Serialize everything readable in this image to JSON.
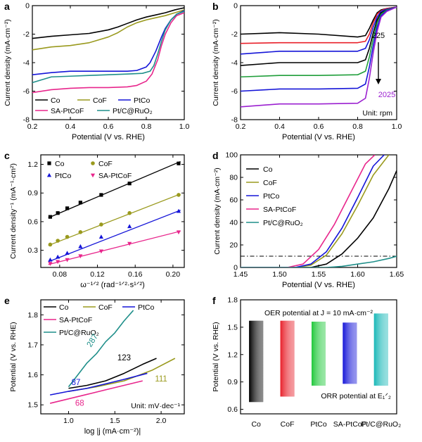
{
  "figure": {
    "title": ""
  },
  "colors": {
    "black": "#000000",
    "olive": "#9a9a1e",
    "blue": "#1515d8",
    "magenta": "#e8268c",
    "teal": "#1f8f8a",
    "red": "#e8202a",
    "green": "#1f9e3a",
    "purple": "#9b20d0"
  },
  "chart_data": [
    {
      "id": "a",
      "panel_label": "a",
      "type": "line",
      "xlabel": "Potential (V vs. RHE)",
      "ylabel": "Current density (mA·cm⁻²)",
      "xlim": [
        0.2,
        1.0
      ],
      "ylim": [
        -8,
        0
      ],
      "xticks": [
        0.2,
        0.4,
        0.6,
        0.8,
        1.0
      ],
      "xtick_labels": [
        "0.2",
        "0.4",
        "0.6",
        "0.8",
        "1.0"
      ],
      "yticks": [
        -8,
        -6,
        -4,
        -2,
        0
      ],
      "ytick_labels": [
        "-8",
        "-6",
        "-4",
        "-2",
        "0"
      ],
      "legend": {
        "placement": "bottom-left",
        "columns": 3
      },
      "series": [
        {
          "name": "Co",
          "color": "#000000",
          "x": [
            0.2,
            0.3,
            0.4,
            0.5,
            0.6,
            0.65,
            0.7,
            0.75,
            0.8,
            0.85,
            0.9,
            0.95,
            1.0
          ],
          "y": [
            -2.3,
            -2.15,
            -2.05,
            -1.95,
            -1.7,
            -1.5,
            -1.25,
            -1.0,
            -0.8,
            -0.65,
            -0.5,
            -0.3,
            -0.15
          ]
        },
        {
          "name": "CoF",
          "color": "#9a9a1e",
          "x": [
            0.2,
            0.3,
            0.4,
            0.5,
            0.6,
            0.65,
            0.7,
            0.75,
            0.8,
            0.85,
            0.9,
            0.95,
            1.0
          ],
          "y": [
            -3.1,
            -2.9,
            -2.8,
            -2.6,
            -2.2,
            -1.9,
            -1.5,
            -1.2,
            -1.0,
            -0.85,
            -0.7,
            -0.5,
            -0.3
          ]
        },
        {
          "name": "PtCo",
          "color": "#1515d8",
          "x": [
            0.2,
            0.3,
            0.4,
            0.5,
            0.6,
            0.7,
            0.75,
            0.8,
            0.82,
            0.85,
            0.88,
            0.9,
            0.93,
            0.96,
            1.0
          ],
          "y": [
            -4.85,
            -4.7,
            -4.6,
            -4.6,
            -4.6,
            -4.6,
            -4.55,
            -4.3,
            -4.0,
            -3.2,
            -2.2,
            -1.6,
            -1.0,
            -0.6,
            -0.35
          ]
        },
        {
          "name": "SA-PtCoF",
          "color": "#e8268c",
          "x": [
            0.2,
            0.3,
            0.4,
            0.5,
            0.6,
            0.7,
            0.75,
            0.8,
            0.83,
            0.86,
            0.88,
            0.9,
            0.93,
            0.96,
            1.0
          ],
          "y": [
            -6.1,
            -5.9,
            -5.8,
            -5.75,
            -5.75,
            -5.7,
            -5.6,
            -5.3,
            -4.8,
            -3.8,
            -2.8,
            -2.0,
            -1.2,
            -0.7,
            -0.5
          ]
        },
        {
          "name": "Pt/C@RuO₂",
          "color": "#1f8f8a",
          "x": [
            0.2,
            0.3,
            0.4,
            0.5,
            0.6,
            0.7,
            0.78,
            0.82,
            0.84,
            0.86,
            0.88,
            0.9,
            0.93,
            0.96,
            1.0
          ],
          "y": [
            -5.4,
            -5.0,
            -4.95,
            -4.9,
            -4.85,
            -4.8,
            -4.75,
            -4.6,
            -4.2,
            -3.4,
            -2.5,
            -1.7,
            -1.0,
            -0.6,
            -0.4
          ]
        }
      ]
    },
    {
      "id": "b",
      "panel_label": "b",
      "type": "line",
      "xlabel": "Potential (V vs. RHE)",
      "ylabel": "Current density (mA·cm⁻²)",
      "xlim": [
        0.2,
        1.0
      ],
      "ylim": [
        -8,
        0
      ],
      "xticks": [
        0.2,
        0.4,
        0.6,
        0.8,
        1.0
      ],
      "xtick_labels": [
        "0.2",
        "0.4",
        "0.6",
        "0.8",
        "1.0"
      ],
      "yticks": [
        -8,
        -6,
        -4,
        -2,
        0
      ],
      "ytick_labels": [
        "-8",
        "-6",
        "-4",
        "-2",
        "0"
      ],
      "annotations": {
        "top": "225",
        "bottom": "2025",
        "unit": "Unit: rpm"
      },
      "series": [
        {
          "color": "#000000",
          "x": [
            0.2,
            0.4,
            0.6,
            0.8,
            0.84,
            0.86,
            0.88,
            0.9,
            0.92,
            0.95,
            1.0
          ],
          "y": [
            -2.0,
            -1.9,
            -2.0,
            -2.2,
            -2.1,
            -1.6,
            -1.0,
            -0.5,
            -0.3,
            -0.2,
            -0.1
          ]
        },
        {
          "color": "#e8202a",
          "x": [
            0.2,
            0.4,
            0.6,
            0.8,
            0.84,
            0.86,
            0.88,
            0.9,
            0.92,
            0.95,
            1.0
          ],
          "y": [
            -2.65,
            -2.6,
            -2.6,
            -2.6,
            -2.5,
            -2.0,
            -1.2,
            -0.6,
            -0.35,
            -0.2,
            -0.1
          ]
        },
        {
          "color": "#1515d8",
          "x": [
            0.2,
            0.4,
            0.6,
            0.8,
            0.84,
            0.86,
            0.88,
            0.9,
            0.92,
            0.95,
            1.0
          ],
          "y": [
            -3.4,
            -3.2,
            -3.2,
            -3.2,
            -3.0,
            -2.4,
            -1.5,
            -0.8,
            -0.4,
            -0.25,
            -0.1
          ]
        },
        {
          "color": "#000000",
          "x": [
            0.2,
            0.4,
            0.6,
            0.8,
            0.84,
            0.86,
            0.88,
            0.9,
            0.92,
            0.95,
            1.0
          ],
          "y": [
            -4.2,
            -4.0,
            -4.0,
            -4.0,
            -3.8,
            -3.0,
            -1.9,
            -1.0,
            -0.5,
            -0.3,
            -0.1
          ]
        },
        {
          "color": "#1f9e3a",
          "x": [
            0.2,
            0.4,
            0.6,
            0.8,
            0.84,
            0.86,
            0.88,
            0.9,
            0.92,
            0.95,
            1.0
          ],
          "y": [
            -5.0,
            -4.9,
            -4.9,
            -4.85,
            -4.6,
            -3.6,
            -2.3,
            -1.2,
            -0.6,
            -0.3,
            -0.1
          ]
        },
        {
          "color": "#1515d8",
          "x": [
            0.2,
            0.4,
            0.6,
            0.8,
            0.84,
            0.86,
            0.88,
            0.9,
            0.92,
            0.95,
            1.0
          ],
          "y": [
            -6.0,
            -5.85,
            -5.85,
            -5.8,
            -5.5,
            -4.3,
            -2.8,
            -1.5,
            -0.7,
            -0.35,
            -0.1
          ]
        },
        {
          "color": "#9b20d0",
          "x": [
            0.2,
            0.4,
            0.6,
            0.8,
            0.84,
            0.86,
            0.88,
            0.9,
            0.92,
            0.95,
            1.0
          ],
          "y": [
            -7.1,
            -6.9,
            -6.9,
            -6.85,
            -6.5,
            -5.1,
            -3.3,
            -1.8,
            -0.8,
            -0.4,
            -0.1
          ]
        }
      ]
    },
    {
      "id": "c",
      "panel_label": "c",
      "type": "scatter",
      "xlabel": "ω⁻¹ᐟ² (rad⁻¹ᐟ²·s¹ᐟ²)",
      "ylabel": "Current density⁻¹ (mA⁻¹·cm²)",
      "xlim": [
        0.06,
        0.212
      ],
      "ylim": [
        0.12,
        1.3
      ],
      "xticks": [
        0.08,
        0.12,
        0.16,
        0.2
      ],
      "xtick_labels": [
        "0.08",
        "0.12",
        "0.16",
        "0.20"
      ],
      "yticks": [
        0.3,
        0.6,
        0.9,
        1.2
      ],
      "ytick_labels": [
        "0.3",
        "0.6",
        "0.9",
        "1.2"
      ],
      "legend": {
        "placement": "top-left",
        "columns": 2
      },
      "series": [
        {
          "name": "Co",
          "color": "#000000",
          "marker": "square",
          "x": [
            0.07,
            0.078,
            0.088,
            0.102,
            0.124,
            0.154,
            0.206
          ],
          "y": [
            0.65,
            0.69,
            0.74,
            0.8,
            0.88,
            1.0,
            1.21
          ],
          "fit": [
            [
              0.068,
              0.64
            ],
            [
              0.208,
              1.23
            ]
          ]
        },
        {
          "name": "CoF",
          "color": "#9a9a1e",
          "marker": "circle",
          "x": [
            0.07,
            0.078,
            0.088,
            0.102,
            0.124,
            0.154,
            0.206
          ],
          "y": [
            0.36,
            0.4,
            0.44,
            0.49,
            0.57,
            0.69,
            0.88
          ],
          "fit": [
            [
              0.068,
              0.35
            ],
            [
              0.208,
              0.89
            ]
          ]
        },
        {
          "name": "PtCo",
          "color": "#1515d8",
          "marker": "triangle-up",
          "x": [
            0.07,
            0.078,
            0.088,
            0.102,
            0.124,
            0.154,
            0.206
          ],
          "y": [
            0.2,
            0.23,
            0.27,
            0.34,
            0.44,
            0.55,
            0.71
          ],
          "fit": [
            [
              0.068,
              0.18
            ],
            [
              0.208,
              0.72
            ]
          ]
        },
        {
          "name": "SA-PtCoF",
          "color": "#e8268c",
          "marker": "triangle-down",
          "x": [
            0.07,
            0.078,
            0.088,
            0.102,
            0.124,
            0.154,
            0.206
          ],
          "y": [
            0.16,
            0.18,
            0.2,
            0.24,
            0.29,
            0.37,
            0.49
          ],
          "fit": [
            [
              0.068,
              0.15
            ],
            [
              0.208,
              0.5
            ]
          ]
        }
      ]
    },
    {
      "id": "d",
      "panel_label": "d",
      "type": "line",
      "xlabel": "Potential (V vs. RHE)",
      "ylabel": "Current density (mA·cm⁻²)",
      "xlim": [
        1.45,
        1.65
      ],
      "ylim": [
        0,
        100
      ],
      "xticks": [
        1.45,
        1.5,
        1.55,
        1.6,
        1.65
      ],
      "xtick_labels": [
        "1.45",
        "1.50",
        "1.55",
        "1.60",
        "1.65"
      ],
      "yticks": [
        0,
        20,
        40,
        60,
        80,
        100
      ],
      "ytick_labels": [
        "0",
        "20",
        "40",
        "60",
        "80",
        "100"
      ],
      "reference_line": {
        "y": 10
      },
      "legend": {
        "placement": "top-left",
        "columns": 1
      },
      "series": [
        {
          "name": "Co",
          "color": "#000000",
          "x": [
            1.45,
            1.54,
            1.56,
            1.58,
            1.6,
            1.62,
            1.64,
            1.65
          ],
          "y": [
            0,
            0,
            3,
            12,
            26,
            44,
            70,
            86
          ]
        },
        {
          "name": "CoF",
          "color": "#9a9a1e",
          "x": [
            1.45,
            1.52,
            1.54,
            1.56,
            1.58,
            1.6,
            1.62,
            1.64
          ],
          "y": [
            0,
            0,
            2,
            11,
            30,
            55,
            82,
            100
          ]
        },
        {
          "name": "PtCo",
          "color": "#1515d8",
          "x": [
            1.45,
            1.52,
            1.54,
            1.56,
            1.58,
            1.6,
            1.62,
            1.634
          ],
          "y": [
            0,
            0,
            3,
            14,
            35,
            62,
            90,
            100
          ]
        },
        {
          "name": "SA-PtCoF",
          "color": "#e8268c",
          "x": [
            1.45,
            1.51,
            1.53,
            1.55,
            1.57,
            1.59,
            1.61,
            1.622
          ],
          "y": [
            0,
            0,
            3,
            16,
            38,
            65,
            92,
            100
          ]
        },
        {
          "name": "Pt/C@RuO₂",
          "color": "#1f8f8a",
          "x": [
            1.45,
            1.56,
            1.58,
            1.6,
            1.62,
            1.64,
            1.65
          ],
          "y": [
            0,
            0,
            1,
            3,
            5,
            8,
            10
          ]
        }
      ]
    },
    {
      "id": "e",
      "panel_label": "e",
      "type": "line",
      "xlabel": "log |j (mA·cm⁻²)|",
      "ylabel": "Potential (V vs. RHE)",
      "xlim": [
        0.7,
        2.25
      ],
      "ylim": [
        1.47,
        1.85
      ],
      "xticks": [
        1.0,
        1.5,
        2.0
      ],
      "xtick_labels": [
        "1.0",
        "1.5",
        "2.0"
      ],
      "yticks": [
        1.5,
        1.6,
        1.7,
        1.8
      ],
      "ytick_labels": [
        "1.5",
        "1.6",
        "1.7",
        "1.8"
      ],
      "legend": {
        "placement": "top-left",
        "columns": 3
      },
      "annotations": {
        "tafel_slopes": [
          "123",
          "111",
          "87",
          "68",
          "287"
        ],
        "unit": "Unit: mV·dec⁻¹"
      },
      "series": [
        {
          "name": "Co",
          "color": "#000000",
          "x": [
            1.0,
            1.2,
            1.4,
            1.6,
            1.8,
            1.95
          ],
          "y": [
            1.555,
            1.565,
            1.58,
            1.605,
            1.635,
            1.655
          ]
        },
        {
          "name": "CoF",
          "color": "#9a9a1e",
          "x": [
            1.0,
            1.3,
            1.6,
            1.9,
            2.15
          ],
          "y": [
            1.545,
            1.56,
            1.58,
            1.615,
            1.655
          ]
        },
        {
          "name": "PtCo",
          "color": "#1515d8",
          "x": [
            0.8,
            1.0,
            1.2,
            1.4,
            1.6,
            1.85
          ],
          "y": [
            1.533,
            1.545,
            1.555,
            1.57,
            1.585,
            1.605
          ]
        },
        {
          "name": "SA-PtCoF",
          "color": "#e8268c",
          "x": [
            0.8,
            1.0,
            1.2,
            1.4,
            1.6,
            1.8
          ],
          "y": [
            1.505,
            1.52,
            1.535,
            1.55,
            1.565,
            1.58
          ]
        },
        {
          "name": "Pt/C@RuO₂",
          "color": "#1f8f8a",
          "x": [
            1.0,
            1.1,
            1.2,
            1.3,
            1.4,
            1.5,
            1.6,
            1.7
          ],
          "y": [
            1.56,
            1.6,
            1.64,
            1.67,
            1.71,
            1.74,
            1.78,
            1.815
          ]
        }
      ]
    },
    {
      "id": "f",
      "panel_label": "f",
      "type": "bar",
      "ylabel": "Potential (V vs. RHE)",
      "ylim": [
        0.55,
        1.8
      ],
      "yticks": [
        0.6,
        0.9,
        1.2,
        1.5,
        1.8
      ],
      "ytick_labels": [
        "0.6",
        "0.9",
        "1.2",
        "1.5",
        "1.8"
      ],
      "categories": [
        "Co",
        "CoF",
        "PtCo",
        "SA-PtCoF",
        "Pt/C@RuO₂"
      ],
      "bar_top": [
        1.57,
        1.57,
        1.56,
        1.55,
        1.65
      ],
      "bar_bottom": [
        0.68,
        0.74,
        0.86,
        0.88,
        0.86
      ],
      "colors": [
        "#000000",
        "#e8202a",
        "#1fc83a",
        "#1515d8",
        "#19b8b8"
      ],
      "annotations": {
        "top": "OER potential at J = 10 mA·cm⁻²",
        "bottom": "ORR potential at E₁ᐟ₂"
      }
    }
  ]
}
